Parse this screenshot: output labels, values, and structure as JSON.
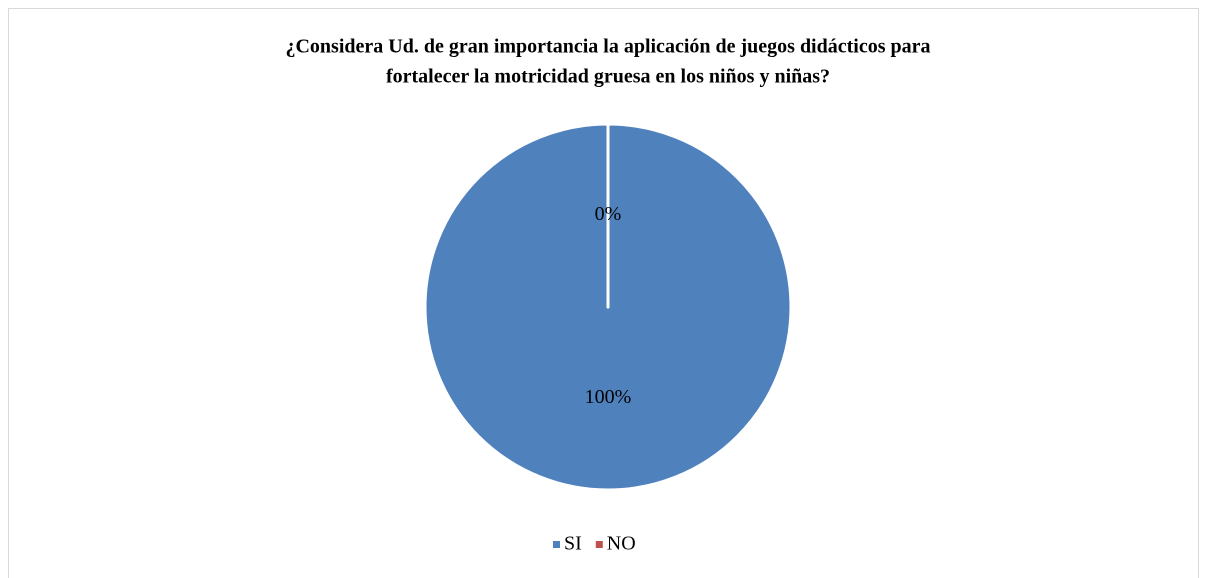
{
  "chart_data": {
    "type": "pie",
    "title": [
      "¿Considera Ud. de gran importancia la aplicación de juegos didácticos para",
      "fortalecer la motricidad gruesa en los niños y niñas?"
    ],
    "categories": [
      "SI",
      "NO"
    ],
    "values": [
      100,
      0
    ],
    "value_labels": [
      "100%",
      "0%"
    ],
    "colors": [
      "#4f81bd",
      "#c0504d"
    ],
    "legend": "bottom"
  }
}
